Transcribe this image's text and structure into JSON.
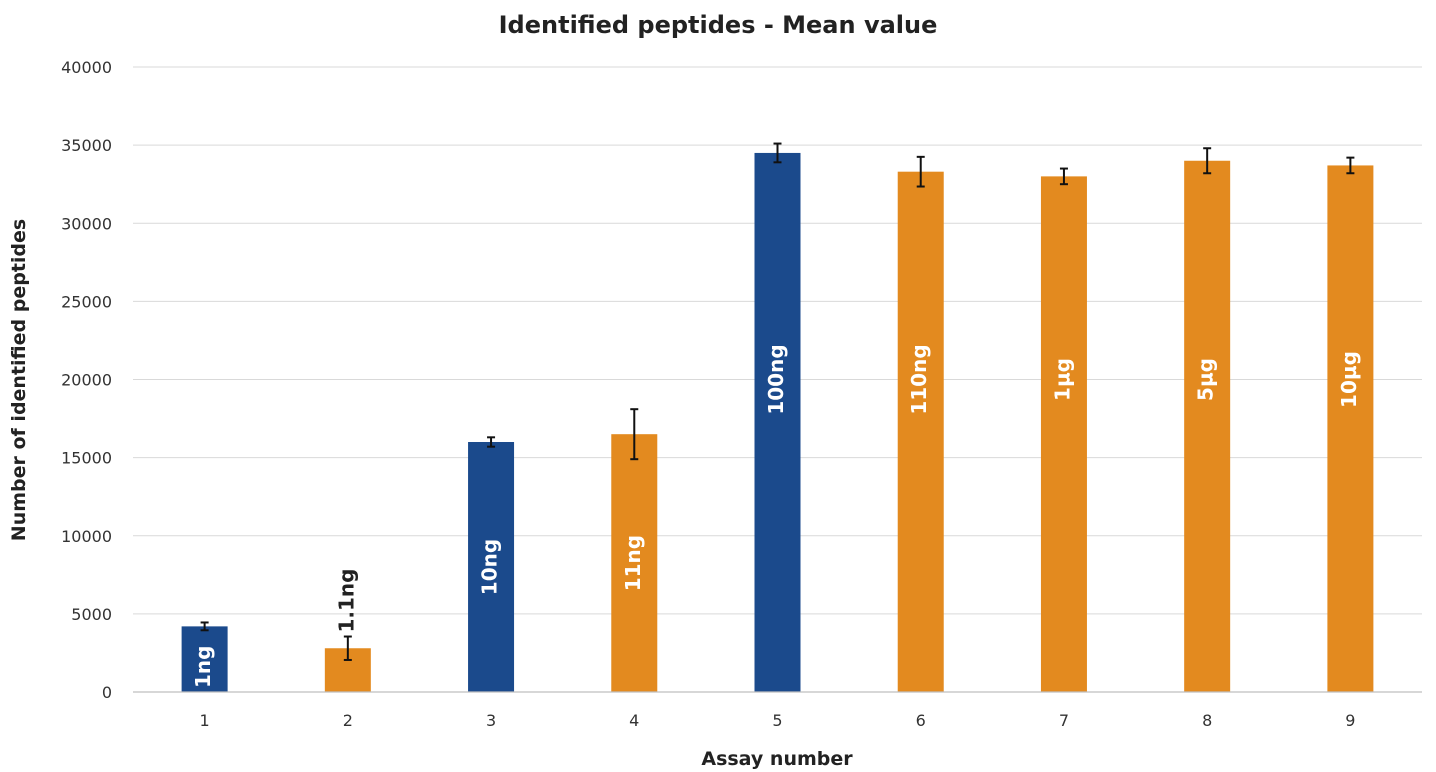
{
  "chart_data": {
    "type": "bar",
    "title": "Identified peptides - Mean value",
    "xlabel": "Assay number",
    "ylabel": "Number of identified peptides",
    "ylim": [
      0,
      40000
    ],
    "yticks": [
      0,
      5000,
      10000,
      15000,
      20000,
      25000,
      30000,
      35000,
      40000
    ],
    "ytick_labels": [
      "0",
      "5000",
      "10000",
      "15000",
      "20000",
      "25000",
      "30000",
      "35000",
      "40000"
    ],
    "categories": [
      "1",
      "2",
      "3",
      "4",
      "5",
      "6",
      "7",
      "8",
      "9"
    ],
    "values": [
      4200,
      2800,
      16000,
      16500,
      34500,
      33300,
      33000,
      34000,
      33700
    ],
    "errors": [
      250,
      750,
      300,
      1600,
      600,
      950,
      500,
      800,
      500
    ],
    "bar_labels": [
      "1ng",
      "1.1ng",
      "10ng",
      "11ng",
      "100ng",
      "110ng",
      "1µg",
      "5µg",
      "10µg"
    ],
    "bar_colors": [
      "#1b4a8c",
      "#e38a1f",
      "#1b4a8c",
      "#e38a1f",
      "#1b4a8c",
      "#e38a1f",
      "#e38a1f",
      "#e38a1f",
      "#e38a1f"
    ],
    "grid": true,
    "legend": "none"
  }
}
